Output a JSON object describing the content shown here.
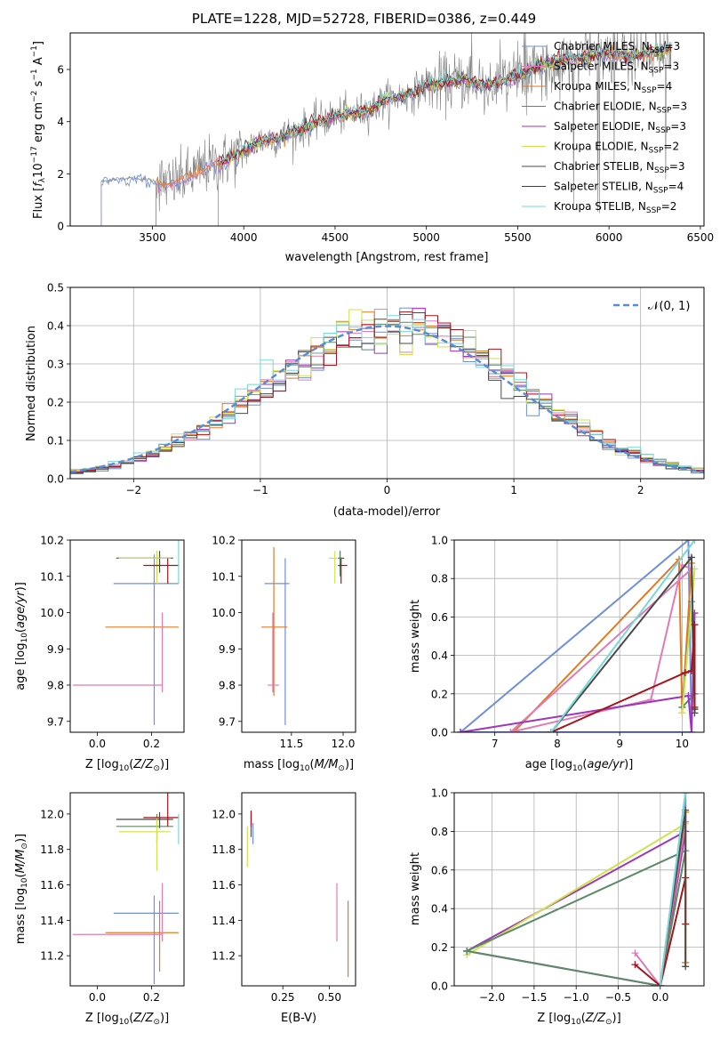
{
  "page": {
    "title": "PLATE=1228, MJD=52728, FIBERID=0386, z=0.449"
  },
  "colors": {
    "Chabrier MILES": "#6f8fdc",
    "Salpeter MILES": "#e07bb5",
    "Kroupa MILES": "#e07b24",
    "Chabrier ELODIE": "#5b8a68",
    "Salpeter ELODIE": "#9d36b8",
    "Kroupa ELODIE": "#cfe24a",
    "Chabrier STELIB": "#4a4a4a",
    "Salpeter STELIB": "#a5141c",
    "Kroupa STELIB": "#77d8d8",
    "data": "#808080",
    "normal": "#5b8bd6"
  },
  "chart_data": [
    {
      "id": "spectrum",
      "type": "line",
      "title": "PLATE=1228, MJD=52728, FIBERID=0386, z=0.449",
      "xlabel": "wavelength [Angstrom, rest frame]",
      "ylabel": "Flux [f_λ 10^-17 erg cm^-2 s^-1 A^-1]",
      "xlim": [
        3050,
        6520
      ],
      "ylim": [
        0,
        7.4
      ],
      "xticks": [
        "3500",
        "4000",
        "4500",
        "5000",
        "5500",
        "6000",
        "6500"
      ],
      "yticks": [
        "0",
        "2",
        "4",
        "6"
      ],
      "legend_position": "top-right",
      "legend": [
        {
          "label": "Chabrier MILES, N_SSP=3",
          "main": "Chabrier MILES, N",
          "sub": "SSP",
          "tail": "=3"
        },
        {
          "label": "Salpeter MILES, N_SSP=3",
          "main": "Salpeter MILES, N",
          "sub": "SSP",
          "tail": "=3"
        },
        {
          "label": "Kroupa MILES, N_SSP=4",
          "main": "Kroupa MILES, N",
          "sub": "SSP",
          "tail": "=4"
        },
        {
          "label": "Chabrier ELODIE, N_SSP=3",
          "main": "Chabrier ELODIE, N",
          "sub": "SSP",
          "tail": "=3"
        },
        {
          "label": "Salpeter ELODIE, N_SSP=3",
          "main": "Salpeter ELODIE, N",
          "sub": "SSP",
          "tail": "=3"
        },
        {
          "label": "Kroupa ELODIE, N_SSP=2",
          "main": "Kroupa ELODIE, N",
          "sub": "SSP",
          "tail": "=2"
        },
        {
          "label": "Chabrier STELIB, N_SSP=3",
          "main": "Chabrier STELIB, N",
          "sub": "SSP",
          "tail": "=3"
        },
        {
          "label": "Salpeter STELIB, N_SSP=4",
          "main": "Salpeter STELIB, N",
          "sub": "SSP",
          "tail": "=4"
        },
        {
          "label": "Kroupa STELIB, N_SSP=2",
          "main": "Kroupa STELIB, N",
          "sub": "SSP",
          "tail": "=2"
        }
      ],
      "continuum": {
        "x": [
          3220,
          3300,
          3400,
          3500,
          3600,
          3700,
          3800,
          3900,
          4000,
          4100,
          4200,
          4300,
          4400,
          4500,
          4600,
          4700,
          4800,
          4900,
          5000,
          5100,
          5200,
          5300,
          5400,
          5500,
          5600,
          5700,
          5800,
          5900,
          6000,
          6100,
          6200,
          6350
        ],
        "y": [
          1.7,
          1.8,
          1.85,
          1.75,
          1.6,
          1.9,
          2.3,
          2.5,
          2.9,
          3.3,
          3.4,
          3.65,
          4.0,
          4.2,
          4.3,
          4.5,
          4.9,
          5.0,
          5.4,
          5.45,
          5.6,
          5.4,
          5.5,
          5.7,
          6.1,
          6.3,
          6.4,
          6.5,
          6.6,
          6.5,
          6.6,
          6.8
        ]
      },
      "model_starts": [
        3220,
        3520,
        3520,
        3860,
        3860,
        3860,
        3860,
        3860,
        3860
      ]
    },
    {
      "id": "residuals",
      "type": "histogram",
      "xlabel": "(data-model)/error",
      "ylabel": "Normed distribution",
      "xlim": [
        -2.5,
        2.5
      ],
      "ylim": [
        0,
        0.5
      ],
      "xticks": [
        "−2",
        "−1",
        "0",
        "1",
        "2"
      ],
      "yticks": [
        "0.0",
        "0.1",
        "0.2",
        "0.3",
        "0.4",
        "0.5"
      ],
      "grid": true,
      "legend_position": "top-right",
      "legend_label": "𝒩(0, 1)",
      "bin_width": 0.1,
      "normal_curve": {
        "mean": 0,
        "std": 1
      }
    },
    {
      "id": "age_vs_Z",
      "type": "errorbar",
      "xlabel": "Z [log10(Z/Z⊙)]",
      "ylabel": "age  [log10(age/yr)]",
      "xlim": [
        -0.1,
        0.32
      ],
      "ylim": [
        9.67,
        10.2
      ],
      "xticks": [
        "0.0",
        "0.2"
      ],
      "yticks": [
        "9.7",
        "9.8",
        "9.9",
        "10.0",
        "10.1",
        "10.2"
      ],
      "points": [
        {
          "model": "Chabrier MILES",
          "x": 0.21,
          "xerr": [
            0.15,
            0.09
          ],
          "y": 10.08,
          "yerr": [
            0.39,
            0.08
          ]
        },
        {
          "model": "Kroupa MILES",
          "x": 0.23,
          "xerr": [
            0.2,
            0.07
          ],
          "y": 9.96,
          "yerr": [
            0.0,
            0.0
          ]
        },
        {
          "model": "Salpeter MILES",
          "x": 0.24,
          "xerr": [
            0.33,
            0.0
          ],
          "y": 9.8,
          "yerr": [
            0.02,
            0.2
          ]
        },
        {
          "model": "Chabrier STELIB",
          "x": 0.23,
          "xerr": [
            0.16,
            0.05
          ],
          "y": 10.15,
          "yerr": [
            0.04,
            0.02
          ]
        },
        {
          "model": "Chabrier ELODIE",
          "x": 0.22,
          "xerr": [
            0.15,
            0.06
          ],
          "y": 10.15,
          "yerr": [
            0.05,
            0.02
          ]
        },
        {
          "model": "Kroupa ELODIE",
          "x": 0.22,
          "xerr": [
            0.14,
            0.05
          ],
          "y": 10.15,
          "yerr": [
            0.07,
            0.02
          ]
        },
        {
          "model": "Salpeter STELIB",
          "x": 0.26,
          "xerr": [
            0.09,
            0.04
          ],
          "y": 10.13,
          "yerr": [
            0.05,
            0.02
          ]
        },
        {
          "model": "Kroupa STELIB",
          "x": 0.3,
          "xerr": [
            0.0,
            0.0
          ],
          "y": 10.13,
          "yerr": [
            0.05,
            0.07
          ]
        }
      ]
    },
    {
      "id": "age_vs_mass",
      "type": "errorbar",
      "xlabel": "mass [log10(M/M⊙)]",
      "xlim": [
        11.02,
        12.12
      ],
      "ylim": [
        9.67,
        10.2
      ],
      "xticks": [
        "11.5",
        "12.0"
      ],
      "yticks": [
        "9.7",
        "9.8",
        "9.9",
        "10.0",
        "10.1",
        "10.2"
      ],
      "points": [
        {
          "model": "Chabrier MILES",
          "x": 11.44,
          "xerr": [
            0.2,
            0.04
          ],
          "y": 10.08,
          "yerr": [
            0.39,
            0.07
          ]
        },
        {
          "model": "Kroupa MILES",
          "x": 11.33,
          "xerr": [
            0.12,
            0.13
          ],
          "y": 9.96,
          "yerr": [
            0.19,
            0.22
          ]
        },
        {
          "model": "Salpeter MILES",
          "x": 11.32,
          "xerr": [
            0.05,
            0.06
          ],
          "y": 9.8,
          "yerr": [
            0.02,
            0.2
          ]
        },
        {
          "model": "Chabrier STELIB",
          "x": 11.97,
          "xerr": [
            0.02,
            0.04
          ],
          "y": 10.15,
          "yerr": [
            0.04,
            0.02
          ]
        },
        {
          "model": "Kroupa ELODIE",
          "x": 11.92,
          "xerr": [
            0.06,
            0.02
          ],
          "y": 10.15,
          "yerr": [
            0.07,
            0.02
          ]
        },
        {
          "model": "Chabrier ELODIE",
          "x": 11.97,
          "xerr": [
            0.02,
            0.02
          ],
          "y": 10.15,
          "yerr": [
            0.05,
            0.02
          ]
        },
        {
          "model": "Salpeter STELIB",
          "x": 11.98,
          "xerr": [
            0.03,
            0.06
          ],
          "y": 10.13,
          "yerr": [
            0.05,
            0.02
          ]
        }
      ]
    },
    {
      "id": "weight_vs_age",
      "type": "line",
      "xlabel": "age  [log10(age/yr)]",
      "ylabel": "mass weight",
      "xlim": [
        6.35,
        10.35
      ],
      "ylim": [
        0,
        1
      ],
      "xticks": [
        "7",
        "8",
        "9",
        "10"
      ],
      "yticks": [
        "0.0",
        "0.2",
        "0.4",
        "0.6",
        "0.8",
        "1.0"
      ],
      "grid": true,
      "series": [
        {
          "model": "Chabrier MILES",
          "x": [
            6.45,
            10.1,
            10.15,
            6.45
          ],
          "y": [
            0.0,
            1.0,
            0.0,
            0.0
          ]
        },
        {
          "model": "Kroupa MILES",
          "x": [
            7.3,
            9.95,
            10.0,
            10.15,
            10.2
          ],
          "y": [
            0.0,
            0.9,
            0.1,
            0.88,
            0.12
          ]
        },
        {
          "model": "Salpeter MILES",
          "x": [
            7.25,
            9.5,
            10.0,
            10.15,
            7.25
          ],
          "y": [
            0.0,
            0.17,
            0.87,
            0.85,
            0.0
          ]
        },
        {
          "model": "Chabrier ELODIE",
          "x": [
            10.0,
            10.15,
            10.2,
            10.0
          ],
          "y": [
            0.13,
            0.68,
            0.2,
            0.13
          ]
        },
        {
          "model": "Salpeter ELODIE",
          "x": [
            6.45,
            10.1,
            10.15,
            10.2
          ],
          "y": [
            0.0,
            0.19,
            0.0,
            0.62
          ]
        },
        {
          "model": "Kroupa ELODIE",
          "x": [
            10.0,
            10.2
          ],
          "y": [
            0.1,
            0.85
          ]
        },
        {
          "model": "Chabrier STELIB",
          "x": [
            7.9,
            10.15,
            10.2,
            10.2
          ],
          "y": [
            0.0,
            0.91,
            0.12,
            0.1
          ]
        },
        {
          "model": "Salpeter STELIB",
          "x": [
            7.9,
            10.05,
            10.15,
            10.2,
            10.2
          ],
          "y": [
            0.0,
            0.31,
            0.32,
            0.56,
            0.13
          ]
        },
        {
          "model": "Kroupa STELIB",
          "x": [
            7.9,
            10.2
          ],
          "y": [
            0.0,
            1.0
          ]
        }
      ]
    },
    {
      "id": "mass_vs_Z",
      "type": "errorbar",
      "xlabel": "Z [log10(Z/Z⊙)]",
      "ylabel": "mass [log10(M/M⊙)]",
      "xlim": [
        -0.1,
        0.32
      ],
      "ylim": [
        11.03,
        12.12
      ],
      "xticks": [
        "0.0",
        "0.2"
      ],
      "yticks": [
        "11.2",
        "11.4",
        "11.6",
        "11.8",
        "12.0"
      ],
      "points": [
        {
          "model": "Chabrier MILES",
          "x": 0.21,
          "xerr": [
            0.15,
            0.09
          ],
          "y": 11.44,
          "yerr": [
            0.4,
            0.1
          ]
        },
        {
          "model": "Kroupa MILES",
          "x": 0.23,
          "xerr": [
            0.2,
            0.07
          ],
          "y": 11.33,
          "yerr": [
            0.22,
            0.18
          ]
        },
        {
          "model": "Salpeter MILES",
          "x": 0.24,
          "xerr": [
            0.33,
            0.0
          ],
          "y": 11.32,
          "yerr": [
            0.04,
            0.29
          ]
        },
        {
          "model": "Chabrier STELIB",
          "x": 0.23,
          "xerr": [
            0.16,
            0.05
          ],
          "y": 11.97,
          "yerr": [
            0.05,
            0.04
          ]
        },
        {
          "model": "Chabrier ELODIE",
          "x": 0.22,
          "xerr": [
            0.15,
            0.06
          ],
          "y": 11.93,
          "yerr": [
            0.1,
            0.07
          ]
        },
        {
          "model": "Kroupa ELODIE",
          "x": 0.22,
          "xerr": [
            0.14,
            0.05
          ],
          "y": 11.9,
          "yerr": [
            0.22,
            0.08
          ]
        },
        {
          "model": "Salpeter STELIB",
          "x": 0.26,
          "xerr": [
            0.09,
            0.04
          ],
          "y": 11.98,
          "yerr": [
            0.05,
            0.14
          ]
        },
        {
          "model": "Kroupa STELIB",
          "x": 0.3,
          "xerr": [
            0.0,
            0.0
          ],
          "y": 11.98,
          "yerr": [
            0.15,
            0.02
          ]
        }
      ]
    },
    {
      "id": "mass_vs_EBV",
      "type": "errorbar",
      "xlabel": "E(B-V)",
      "xlim": [
        0.03,
        0.64
      ],
      "ylim": [
        11.03,
        12.12
      ],
      "xticks": [
        "0.25",
        "0.50"
      ],
      "yticks": [
        "11.2",
        "11.4",
        "11.6",
        "11.8",
        "12.0"
      ],
      "points": [
        {
          "model": "Kroupa ELODIE",
          "x": 0.06,
          "xerr": [
            0.0,
            0.0
          ],
          "y": 11.85,
          "yerr": [
            0.15,
            0.08
          ]
        },
        {
          "model": "Chabrier STELIB",
          "x": 0.08,
          "xerr": [
            0.0,
            0.0
          ],
          "y": 11.97,
          "yerr": [
            0.1,
            0.04
          ]
        },
        {
          "model": "Salpeter STELIB",
          "x": 0.08,
          "xerr": [
            0.0,
            0.0
          ],
          "y": 11.98,
          "yerr": [
            0.05,
            0.04
          ]
        },
        {
          "model": "Chabrier MILES",
          "x": 0.09,
          "xerr": [
            0.0,
            0.0
          ],
          "y": 11.9,
          "yerr": [
            0.07,
            0.05
          ]
        },
        {
          "model": "Salpeter MILES",
          "x": 0.54,
          "xerr": [
            0.0,
            0.0
          ],
          "y": 11.45,
          "yerr": [
            0.17,
            0.16
          ]
        },
        {
          "model": "Kroupa MILES",
          "x": 0.6,
          "xerr": [
            0.0,
            0.0
          ],
          "y": 11.33,
          "yerr": [
            0.25,
            0.18
          ]
        }
      ]
    },
    {
      "id": "weight_vs_Z",
      "type": "line",
      "xlabel": "Z [log10(Z/Z⊙)]",
      "ylabel": "mass weight",
      "xlim": [
        -2.45,
        0.52
      ],
      "ylim": [
        0,
        1
      ],
      "xticks": [
        "−2.0",
        "−1.5",
        "−1.0",
        "−0.5",
        "0.0"
      ],
      "yticks": [
        "0.0",
        "0.2",
        "0.4",
        "0.6",
        "0.8",
        "1.0"
      ],
      "grid": true,
      "series": [
        {
          "model": "Salpeter ELODIE",
          "x": [
            -2.3,
            0.0,
            0.3,
            -2.3
          ],
          "y": [
            0.18,
            0.0,
            0.8,
            0.18
          ]
        },
        {
          "model": "Kroupa ELODIE",
          "x": [
            -2.3,
            0.3
          ],
          "y": [
            0.16,
            0.84
          ]
        },
        {
          "model": "Chabrier ELODIE",
          "x": [
            -2.3,
            0.3,
            0.0,
            -2.3
          ],
          "y": [
            0.18,
            0.7,
            0.0,
            0.18
          ]
        },
        {
          "model": "Salpeter MILES",
          "x": [
            -0.3,
            0.0,
            0.3
          ],
          "y": [
            0.17,
            0.0,
            0.85
          ]
        },
        {
          "model": "Salpeter STELIB",
          "x": [
            -0.3,
            0.0,
            0.3,
            0.3
          ],
          "y": [
            0.11,
            0.0,
            0.56,
            0.32
          ]
        },
        {
          "model": "Chabrier MILES",
          "x": [
            0.0,
            0.3,
            0.3
          ],
          "y": [
            0.0,
            1.0,
            0.7
          ]
        },
        {
          "model": "Kroupa MILES",
          "x": [
            0.0,
            0.3,
            0.3
          ],
          "y": [
            0.0,
            0.9,
            0.12
          ]
        },
        {
          "model": "Chabrier STELIB",
          "x": [
            0.0,
            0.3,
            0.3
          ],
          "y": [
            0.0,
            0.91,
            0.1
          ]
        },
        {
          "model": "Kroupa STELIB",
          "x": [
            0.0,
            0.3
          ],
          "y": [
            0.0,
            1.0
          ]
        }
      ]
    }
  ]
}
